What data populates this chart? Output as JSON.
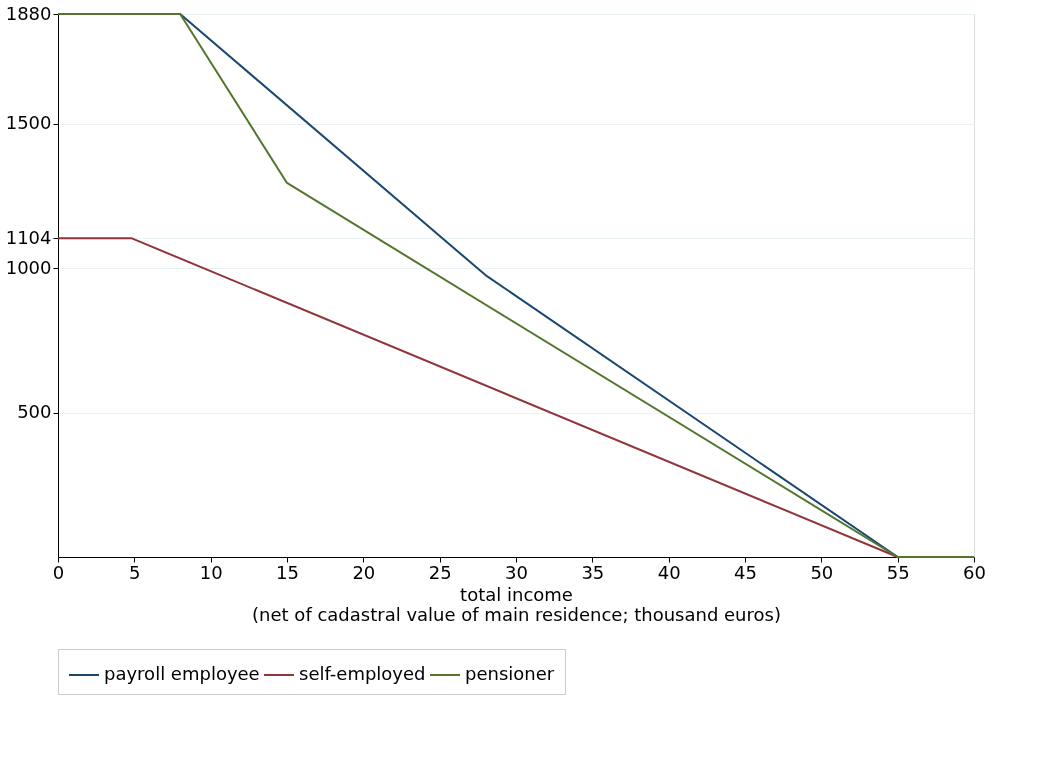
{
  "chart_data": {
    "type": "line",
    "xlabel": "total income\n(net of cadastral value of main residence; thousand euros)",
    "xlim": [
      0,
      60
    ],
    "xticks": [
      0,
      5,
      10,
      15,
      20,
      25,
      30,
      35,
      40,
      45,
      50,
      55,
      60
    ],
    "ylim": [
      0,
      1880
    ],
    "yticks": [
      500,
      1000,
      1104,
      1500,
      1880
    ],
    "grid": "y",
    "legend": "bottom",
    "marker": "none",
    "line_style": "solid",
    "series": [
      {
        "name": "payroll employee",
        "color": "#1a476f",
        "x": [
          0,
          8,
          28,
          55,
          60
        ],
        "values": [
          1880,
          1880,
          976,
          0,
          0
        ]
      },
      {
        "name": "self-employed",
        "color": "#90353b",
        "x": [
          0,
          4.8,
          55,
          60
        ],
        "values": [
          1104,
          1104,
          0,
          0
        ]
      },
      {
        "name": "pensioner",
        "color": "#55752f",
        "x": [
          0,
          8,
          15,
          55,
          60
        ],
        "values": [
          1880,
          1880,
          1295,
          0,
          0
        ]
      }
    ]
  }
}
